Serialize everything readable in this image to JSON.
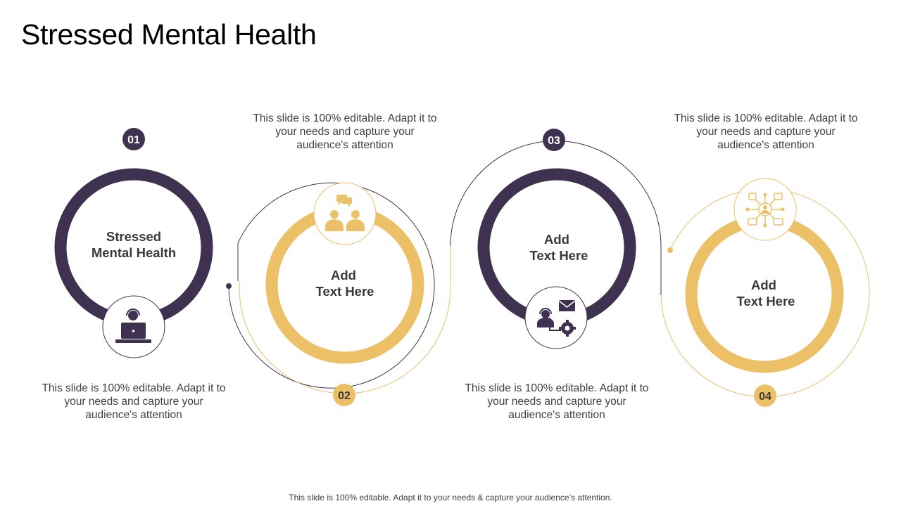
{
  "title": "Stressed Mental Health",
  "footer": "This slide is 100% editable. Adapt it to your needs & capture your audience’s attention.",
  "colors": {
    "dark": "#3f3150",
    "gold": "#ecc066",
    "line": "#3f3150",
    "line_gold": "#e7be6a"
  },
  "steps": [
    {
      "number": "01",
      "center_line1": "Stressed",
      "center_line2": "Mental Health",
      "description": "This slide is 100% editable. Adapt it to your needs and capture your audience's attention",
      "icon": "operator-laptop-icon"
    },
    {
      "number": "02",
      "center_line1": "Add",
      "center_line2": "Text Here",
      "description": "This slide is 100% editable. Adapt it to your needs and capture your audience's attention",
      "icon": "team-chat-icon"
    },
    {
      "number": "03",
      "center_line1": "Add",
      "center_line2": "Text Here",
      "description": "This slide is 100% editable. Adapt it to your needs and capture your audience's attention",
      "icon": "support-settings-icon"
    },
    {
      "number": "04",
      "center_line1": "Add",
      "center_line2": "Text Here",
      "description": "This slide is 100% editable. Adapt it to your needs and capture your audience's attention",
      "icon": "network-user-icon"
    }
  ]
}
